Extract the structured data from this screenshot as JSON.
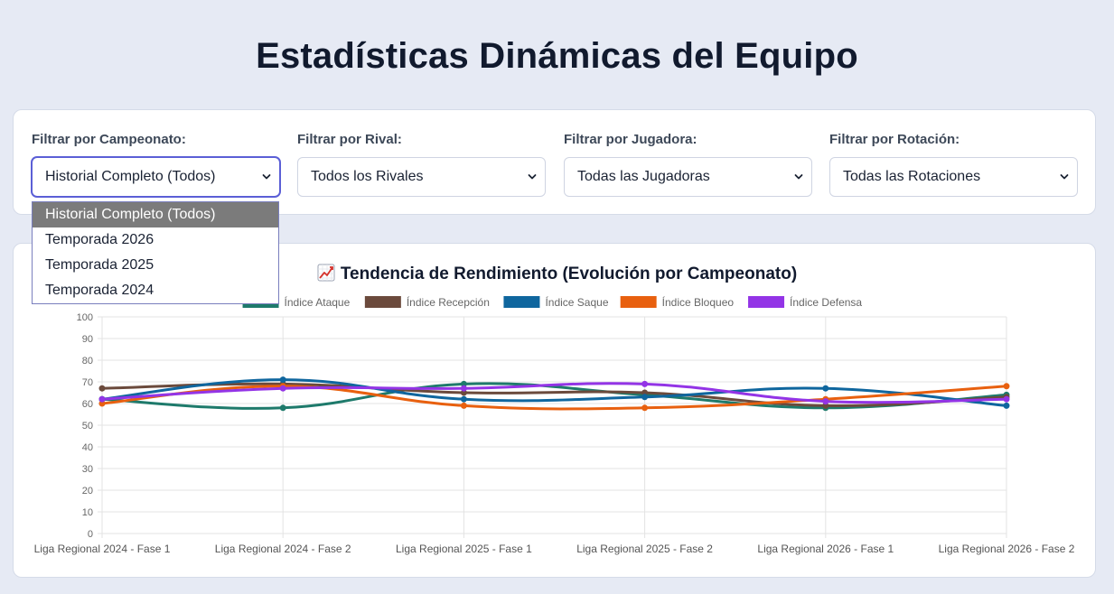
{
  "header": {
    "title": "Estadísticas Dinámicas del Equipo"
  },
  "filters": [
    {
      "label": "Filtrar por Campeonato:",
      "value": "Historial Completo (Todos)",
      "name": "campeonato"
    },
    {
      "label": "Filtrar por Rival:",
      "value": "Todos los Rivales",
      "name": "rival"
    },
    {
      "label": "Filtrar por Jugadora:",
      "value": "Todas las Jugadoras",
      "name": "jugadora"
    },
    {
      "label": "Filtrar por Rotación:",
      "value": "Todas las Rotaciones",
      "name": "rotacion"
    }
  ],
  "dropdown": {
    "options": [
      "Historial Completo (Todos)",
      "Temporada 2026",
      "Temporada 2025",
      "Temporada 2024"
    ],
    "selected": 0
  },
  "chart": {
    "title": "Tendencia de Rendimiento (Evolución por Campeonato)",
    "title_icon": "chart-increasing-icon"
  },
  "chart_data": {
    "type": "line",
    "title": "Tendencia de Rendimiento (Evolución por Campeonato)",
    "xlabel": "",
    "ylabel": "",
    "ylim": [
      0,
      100
    ],
    "yticks": [
      0,
      10,
      20,
      30,
      40,
      50,
      60,
      70,
      80,
      90,
      100
    ],
    "grid": true,
    "legend": "top",
    "smooth": true,
    "categories": [
      "Liga Regional 2024 - Fase 1",
      "Liga Regional 2024 - Fase 2",
      "Liga Regional 2025 - Fase 1",
      "Liga Regional 2025 - Fase 2",
      "Liga Regional 2026 - Fase 1",
      "Liga Regional 2026 - Fase 2"
    ],
    "series": [
      {
        "name": "Índice Ataque",
        "color": "#1e7a6b",
        "values": [
          62,
          58,
          69,
          64,
          58,
          64
        ]
      },
      {
        "name": "Índice Recepción",
        "color": "#6b4a3c",
        "values": [
          67,
          69,
          65,
          65,
          59,
          63
        ]
      },
      {
        "name": "Índice Saque",
        "color": "#0f669e",
        "values": [
          62,
          71,
          62,
          63,
          67,
          59
        ]
      },
      {
        "name": "Índice Bloqueo",
        "color": "#e8600f",
        "values": [
          60,
          68,
          59,
          58,
          62,
          68
        ]
      },
      {
        "name": "Índice Defensa",
        "color": "#9334e6",
        "values": [
          62,
          67,
          67,
          69,
          61,
          62
        ]
      }
    ]
  }
}
